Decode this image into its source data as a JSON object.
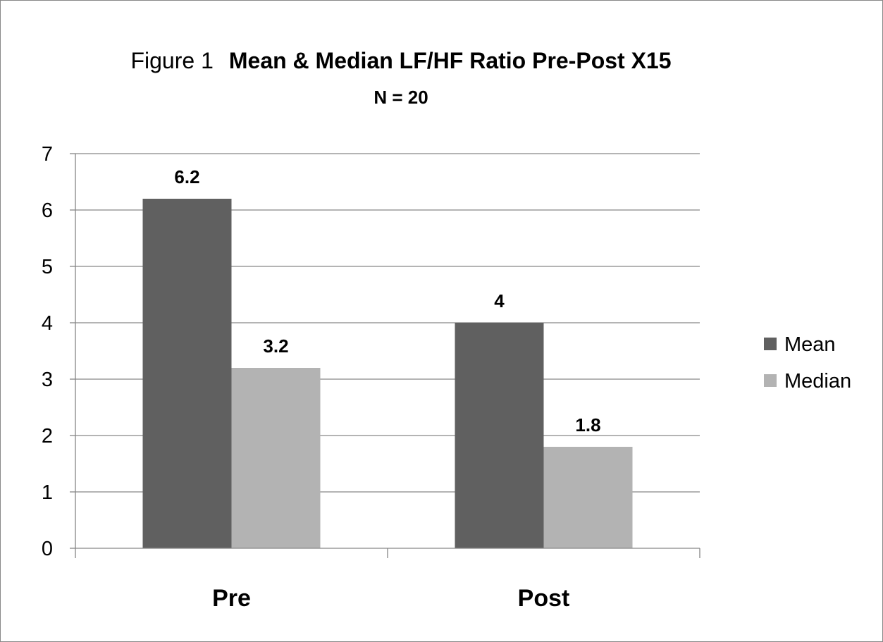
{
  "chart_data": {
    "type": "bar",
    "title_prefix": "Figure 1",
    "title": "Mean & Median LF/HF Ratio Pre-Post X15",
    "subtitle": "N = 20",
    "xlabel": "",
    "ylabel": "",
    "categories": [
      "Pre",
      "Post"
    ],
    "series": [
      {
        "name": "Mean",
        "values": [
          6.2,
          4
        ],
        "labels": [
          "6.2",
          "4"
        ],
        "color": "#606060"
      },
      {
        "name": "Median",
        "values": [
          3.2,
          1.8
        ],
        "labels": [
          "3.2",
          "1.8"
        ],
        "color": "#b3b3b3"
      }
    ],
    "ylim": [
      0,
      7
    ],
    "yticks": [
      0,
      1,
      2,
      3,
      4,
      5,
      6,
      7
    ],
    "grid": true,
    "legend_position": "right"
  }
}
